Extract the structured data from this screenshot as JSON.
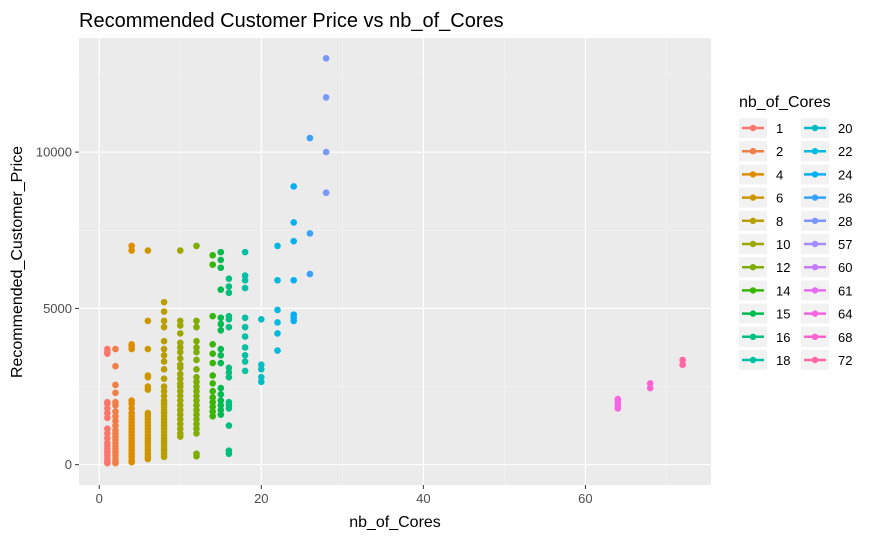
{
  "chart_data": {
    "type": "scatter",
    "title": "Recommended Customer Price vs nb_of_Cores",
    "xlabel": "nb_of_Cores",
    "ylabel": "Recommended_Customer_Price",
    "xlim": [
      -2.5,
      75.5
    ],
    "ylim": [
      -650,
      13650
    ],
    "xticks": [
      0,
      20,
      40,
      60
    ],
    "xticks_labels": [
      "0",
      "20",
      "40",
      "60"
    ],
    "yticks": [
      0,
      5000,
      10000
    ],
    "yticks_labels": [
      "0",
      "5000",
      "10000"
    ],
    "grid": true,
    "background": "#ebebeb",
    "legend": {
      "title": "nb_of_Cores",
      "position": "right",
      "columns": 2
    },
    "series": [
      {
        "name": "1",
        "color": "#F8766D",
        "x": 1,
        "y": [
          3700,
          3600,
          3550,
          2000,
          1950,
          1800,
          1650,
          1500,
          1150,
          1000,
          850,
          700,
          600,
          500,
          400,
          300,
          200,
          100,
          50
        ]
      },
      {
        "name": "2",
        "color": "#EF7F47",
        "x": 2,
        "y": [
          3700,
          3150,
          2550,
          2300,
          2000,
          1900,
          1700,
          1550,
          1400,
          1250,
          1100,
          1000,
          900,
          800,
          700,
          600,
          500,
          400,
          300,
          200,
          100,
          50
        ]
      },
      {
        "name": "4",
        "color": "#DE8C00",
        "x": 4,
        "y": [
          7000,
          6850,
          3850,
          3800,
          3700,
          2050,
          1950,
          1800,
          1650,
          1550,
          1450,
          1350,
          1250,
          1150,
          1050,
          950,
          850,
          750,
          650,
          550,
          450,
          350,
          250,
          150,
          80
        ]
      },
      {
        "name": "6",
        "color": "#CD9600",
        "x": 6,
        "y": [
          6850,
          4600,
          3700,
          2850,
          2800,
          2500,
          2400,
          1650,
          1550,
          1450,
          1350,
          1250,
          1150,
          1050,
          950,
          850,
          750,
          650,
          550,
          450,
          350,
          250,
          180
        ]
      },
      {
        "name": "8",
        "color": "#B79F00",
        "x": 8,
        "y": [
          5200,
          4900,
          4600,
          4400,
          3950,
          3700,
          3500,
          3300,
          3050,
          2750,
          2500,
          2350,
          2200,
          2050,
          1950,
          1850,
          1750,
          1650,
          1550,
          1450,
          1350,
          1250,
          1150,
          1050,
          950,
          850,
          750,
          650,
          550,
          450,
          350,
          250
        ]
      },
      {
        "name": "10",
        "color": "#9DA700",
        "x": 10,
        "y": [
          6850,
          4600,
          4450,
          4200,
          3900,
          3750,
          3600,
          3400,
          3200,
          3100,
          2900,
          2750,
          2600,
          2500,
          2350,
          2200,
          2050,
          1900,
          1750,
          1600,
          1450,
          1300,
          1150,
          1000,
          900
        ]
      },
      {
        "name": "12",
        "color": "#7CAE00",
        "x": 12,
        "y": [
          7000,
          4600,
          4400,
          3950,
          3750,
          3600,
          3350,
          3050,
          2800,
          2650,
          2500,
          2350,
          2200,
          2050,
          1900,
          1750,
          1600,
          1450,
          1300,
          1150,
          1000,
          350,
          270
        ]
      },
      {
        "name": "14",
        "color": "#39B600",
        "x": 14,
        "y": [
          6700,
          6400,
          4750,
          3850,
          3550,
          3250,
          2850,
          2600,
          2350,
          2150,
          2000,
          1850,
          1700,
          1550
        ]
      },
      {
        "name": "15",
        "color": "#00BB4E",
        "x": 15,
        "y": [
          6800,
          6550,
          6300,
          5600,
          4700,
          4500,
          4300,
          3700,
          3500,
          3250,
          2450,
          2250,
          2050,
          1900,
          1750,
          1600
        ]
      },
      {
        "name": "16",
        "color": "#00BF7D",
        "x": 16,
        "y": [
          5950,
          5700,
          5500,
          4750,
          4650,
          4400,
          3100,
          2950,
          2800,
          2000,
          1900,
          1800,
          1250,
          450,
          350
        ]
      },
      {
        "name": "18",
        "color": "#00C1A3",
        "x": 18,
        "y": [
          6800,
          6050,
          5900,
          5650,
          4700,
          4400,
          4100,
          3750,
          3500,
          3300,
          3000
        ]
      },
      {
        "name": "20",
        "color": "#00BFC4",
        "x": 20,
        "y": [
          4650,
          3200,
          3050,
          2800,
          2650
        ]
      },
      {
        "name": "22",
        "color": "#00BAE0",
        "x": 22,
        "y": [
          7000,
          5900,
          4950,
          4550,
          4200,
          3650
        ]
      },
      {
        "name": "24",
        "color": "#00B0F6",
        "x": 24,
        "y": [
          8900,
          7750,
          7150,
          5900,
          4800,
          4700,
          4600
        ]
      },
      {
        "name": "26",
        "color": "#35A2FF",
        "x": 26,
        "y": [
          10450,
          7400,
          6100
        ]
      },
      {
        "name": "28",
        "color": "#7997FF",
        "x": 28,
        "y": [
          13000,
          11750,
          10000,
          8700
        ]
      },
      {
        "name": "57",
        "color": "#A58AFF",
        "x": 57,
        "y": []
      },
      {
        "name": "60",
        "color": "#C77CFF",
        "x": 60,
        "y": []
      },
      {
        "name": "61",
        "color": "#E76BF3",
        "x": 61,
        "y": []
      },
      {
        "name": "64",
        "color": "#F564E3",
        "x": 64,
        "y": [
          2100,
          2000,
          1900,
          1800
        ]
      },
      {
        "name": "68",
        "color": "#FD61D1",
        "x": 68,
        "y": [
          2600,
          2450
        ]
      },
      {
        "name": "72",
        "color": "#FF67A4",
        "x": 72,
        "y": [
          3350,
          3200
        ]
      }
    ]
  }
}
